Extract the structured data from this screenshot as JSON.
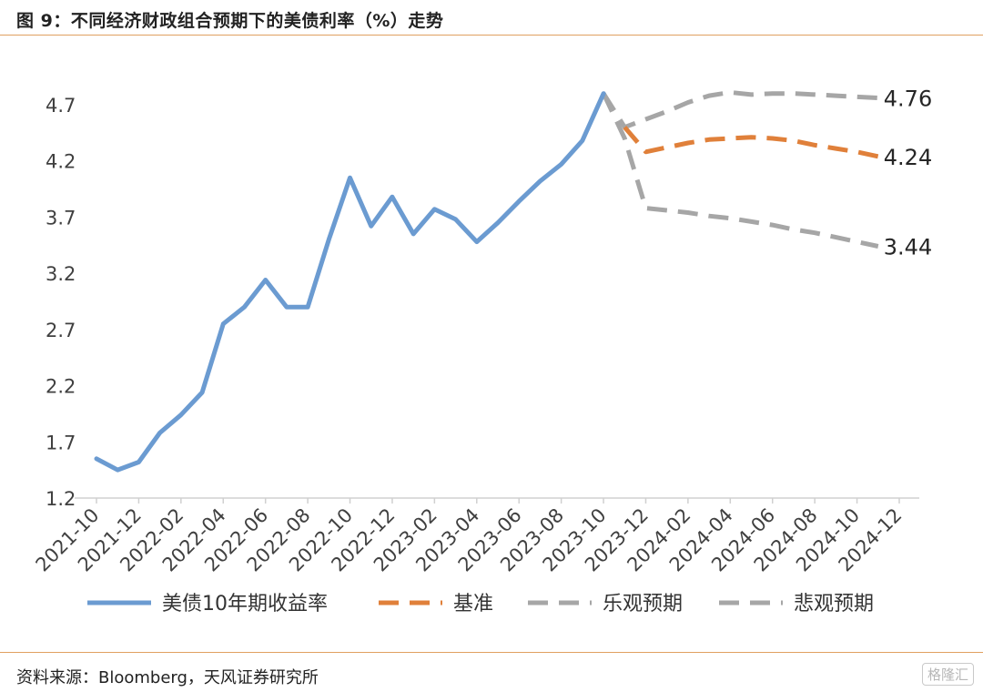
{
  "title": "图 9：不同经济财政组合预期下的美债利率（%）走势",
  "source": "资料来源：Bloomberg，天风证券研究所",
  "watermark": "格隆汇",
  "chart_data": {
    "type": "line",
    "title": "",
    "xlabel": "",
    "ylabel": "",
    "ylim": [
      1.2,
      4.95
    ],
    "yticks": [
      1.2,
      1.7,
      2.2,
      2.7,
      3.2,
      3.7,
      4.2,
      4.7
    ],
    "x_categories": [
      "2021-10",
      "2021-11",
      "2021-12",
      "2022-01",
      "2022-02",
      "2022-03",
      "2022-04",
      "2022-05",
      "2022-06",
      "2022-07",
      "2022-08",
      "2022-09",
      "2022-10",
      "2022-11",
      "2022-12",
      "2023-01",
      "2023-02",
      "2023-03",
      "2023-04",
      "2023-05",
      "2023-06",
      "2023-07",
      "2023-08",
      "2023-09",
      "2023-10",
      "2023-11",
      "2023-12",
      "2024-01",
      "2024-02",
      "2024-03",
      "2024-04",
      "2024-05",
      "2024-06",
      "2024-07",
      "2024-08",
      "2024-09",
      "2024-10",
      "2024-11",
      "2024-12"
    ],
    "x_tick_labels": [
      "2021-10",
      "2021-12",
      "2022-02",
      "2022-04",
      "2022-06",
      "2022-08",
      "2022-10",
      "2022-12",
      "2023-02",
      "2023-04",
      "2023-06",
      "2023-08",
      "2023-10",
      "2023-12",
      "2024-02",
      "2024-04",
      "2024-06",
      "2024-08",
      "2024-10",
      "2024-12"
    ],
    "series": [
      {
        "name": "美债10年期收益率",
        "color": "#6b9bd1",
        "dash": "solid",
        "start_index": 0,
        "values": [
          1.55,
          1.45,
          1.52,
          1.78,
          1.94,
          2.14,
          2.75,
          2.9,
          3.14,
          2.9,
          2.9,
          3.5,
          4.05,
          3.62,
          3.88,
          3.55,
          3.77,
          3.68,
          3.48,
          3.65,
          3.84,
          4.02,
          4.17,
          4.38,
          4.8
        ]
      },
      {
        "name": "基准",
        "color": "#e0803a",
        "dash": "dashed",
        "start_index": 25,
        "values": [
          4.5,
          4.28,
          4.32,
          4.36,
          4.39,
          4.4,
          4.41,
          4.4,
          4.38,
          4.34,
          4.31,
          4.28,
          4.24
        ]
      },
      {
        "name": "乐观预期",
        "color": "#a6a6a6",
        "dash": "dashed",
        "start_index": 24,
        "values": [
          4.8,
          4.5,
          4.57,
          4.64,
          4.72,
          4.78,
          4.81,
          4.79,
          4.8,
          4.8,
          4.79,
          4.78,
          4.77,
          4.76
        ]
      },
      {
        "name": "悲观预期",
        "color": "#a6a6a6",
        "dash": "dashed",
        "start_index": 24,
        "values": [
          4.8,
          4.4,
          3.78,
          3.76,
          3.74,
          3.71,
          3.69,
          3.66,
          3.63,
          3.59,
          3.56,
          3.52,
          3.48,
          3.44
        ]
      }
    ],
    "end_labels": [
      "4.76",
      "4.24",
      "3.44"
    ],
    "legend_position": "bottom"
  }
}
